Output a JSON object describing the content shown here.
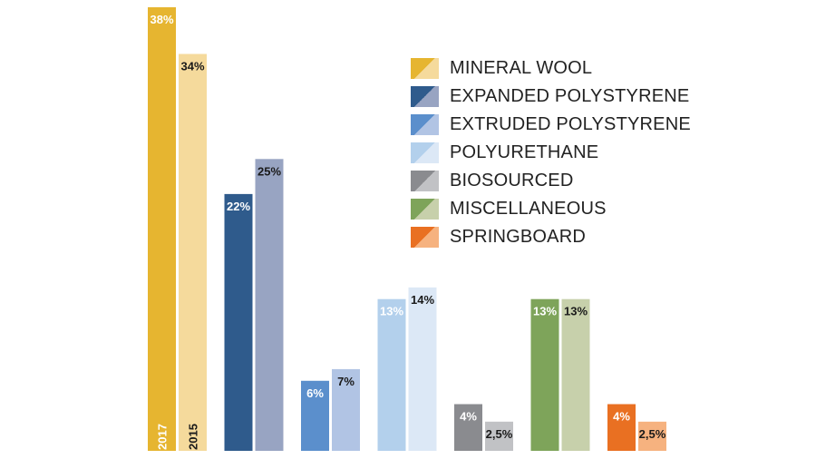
{
  "chart_data": {
    "type": "bar",
    "title": "",
    "xlabel": "",
    "ylabel": "",
    "ylim": [
      0,
      38
    ],
    "grid": false,
    "legend_position": "top-right",
    "years": [
      "2017",
      "2015"
    ],
    "categories": [
      "MINERAL WOOL",
      "EXPANDED POLYSTYRENE",
      "EXTRUDED POLYSTYRENE",
      "POLYURETHANE",
      "BIOSOURCED",
      "MISCELLANEOUS",
      "SPRINGBOARD"
    ],
    "series": [
      {
        "year": "2017",
        "values": [
          38,
          22,
          6,
          13,
          4,
          13,
          4
        ],
        "labels": [
          "38%",
          "22%",
          "6%",
          "13%",
          "4%",
          "13%",
          "4%"
        ]
      },
      {
        "year": "2015",
        "values": [
          34,
          25,
          7,
          14,
          2.5,
          13,
          2.5
        ],
        "labels": [
          "34%",
          "25%",
          "7%",
          "14%",
          "2,5%",
          "13%",
          "2,5%"
        ]
      }
    ],
    "colors": [
      {
        "c2017": "#e6b530",
        "c2015": "#f5da9c"
      },
      {
        "c2017": "#2f5b8c",
        "c2015": "#98a4c2"
      },
      {
        "c2017": "#5b8fcc",
        "c2015": "#b1c4e4"
      },
      {
        "c2017": "#b3d0ec",
        "c2015": "#dce8f6"
      },
      {
        "c2017": "#8a8b8f",
        "c2015": "#c1c2c5"
      },
      {
        "c2017": "#7ea45a",
        "c2015": "#c7d0ab"
      },
      {
        "c2017": "#e97022",
        "c2015": "#f6b27f"
      }
    ],
    "label_colors_2015_dark": true
  }
}
